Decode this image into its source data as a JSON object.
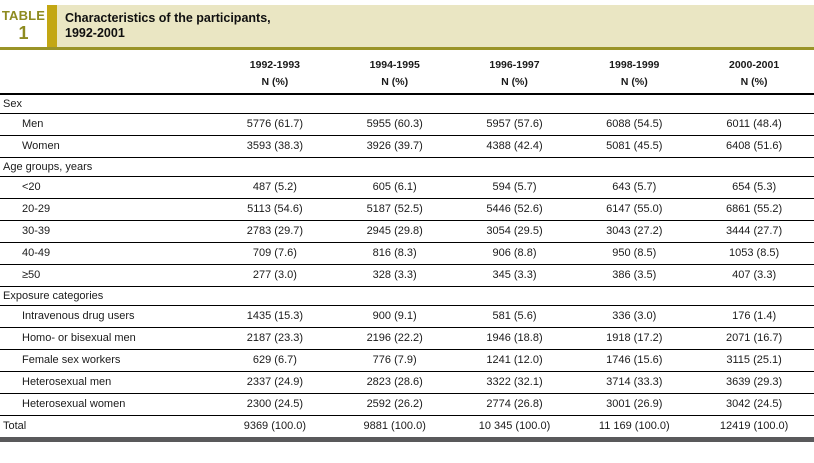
{
  "badge": {
    "word": "TABLE",
    "number": "1"
  },
  "title": {
    "line1": "Characteristics of the participants,",
    "line2": "1992-2001"
  },
  "columns": [
    {
      "year": "1992-1993",
      "sub": "N (%)"
    },
    {
      "year": "1994-1995",
      "sub": "N (%)"
    },
    {
      "year": "1996-1997",
      "sub": "N (%)"
    },
    {
      "year": "1998-1999",
      "sub": "N (%)"
    },
    {
      "year": "2000-2001",
      "sub": "N (%)"
    }
  ],
  "sections": [
    {
      "header": "Sex",
      "rows": [
        {
          "label": "Men",
          "values": [
            "5776 (61.7)",
            "5955 (60.3)",
            "5957 (57.6)",
            "6088 (54.5)",
            "6011 (48.4)"
          ]
        },
        {
          "label": "Women",
          "values": [
            "3593 (38.3)",
            "3926 (39.7)",
            "4388 (42.4)",
            "5081 (45.5)",
            "6408 (51.6)"
          ]
        }
      ]
    },
    {
      "header": "Age groups, years",
      "rows": [
        {
          "label": "<20",
          "values": [
            "487 (5.2)",
            "605 (6.1)",
            "594 (5.7)",
            "643 (5.7)",
            "654 (5.3)"
          ]
        },
        {
          "label": "20-29",
          "values": [
            "5113 (54.6)",
            "5187 (52.5)",
            "5446 (52.6)",
            "6147 (55.0)",
            "6861 (55.2)"
          ]
        },
        {
          "label": "30-39",
          "values": [
            "2783 (29.7)",
            "2945 (29.8)",
            "3054 (29.5)",
            "3043 (27.2)",
            "3444 (27.7)"
          ]
        },
        {
          "label": "40-49",
          "values": [
            "709 (7.6)",
            "816 (8.3)",
            "906 (8.8)",
            "950 (8.5)",
            "1053 (8.5)"
          ]
        },
        {
          "label": "≥50",
          "values": [
            "277 (3.0)",
            "328 (3.3)",
            "345 (3.3)",
            "386 (3.5)",
            "407 (3.3)"
          ]
        }
      ]
    },
    {
      "header": "Exposure categories",
      "rows": [
        {
          "label": "Intravenous drug users",
          "values": [
            "1435 (15.3)",
            "900 (9.1)",
            "581 (5.6)",
            "336 (3.0)",
            "176 (1.4)"
          ]
        },
        {
          "label": "Homo- or bisexual men",
          "values": [
            "2187 (23.3)",
            "2196 (22.2)",
            "1946 (18.8)",
            "1918 (17.2)",
            "2071 (16.7)"
          ]
        },
        {
          "label": "Female sex workers",
          "values": [
            "629 (6.7)",
            "776 (7.9)",
            "1241 (12.0)",
            "1746 (15.6)",
            "3115 (25.1)"
          ]
        },
        {
          "label": "Heterosexual men",
          "values": [
            "2337 (24.9)",
            "2823 (28.6)",
            "3322 (32.1)",
            "3714 (33.3)",
            "3639 (29.3)"
          ]
        },
        {
          "label": "Heterosexual women",
          "values": [
            "2300 (24.5)",
            "2592 (26.2)",
            "2774 (26.8)",
            "3001 (26.9)",
            "3042 (24.5)"
          ]
        }
      ]
    }
  ],
  "total": {
    "label": "Total",
    "values": [
      "9369 (100.0)",
      "9881 (100.0)",
      "10 345 (100.0)",
      "11 169 (100.0)",
      "12419 (100.0)"
    ]
  },
  "colors": {
    "gold_bar": "#c3a713",
    "title_band_khaki": "#eae6c3",
    "badge_text_olive": "#8e8b20",
    "header_rule_olive": "#9a9428",
    "bottom_bar_gray": "#59595b",
    "row_line_black": "#000000"
  }
}
